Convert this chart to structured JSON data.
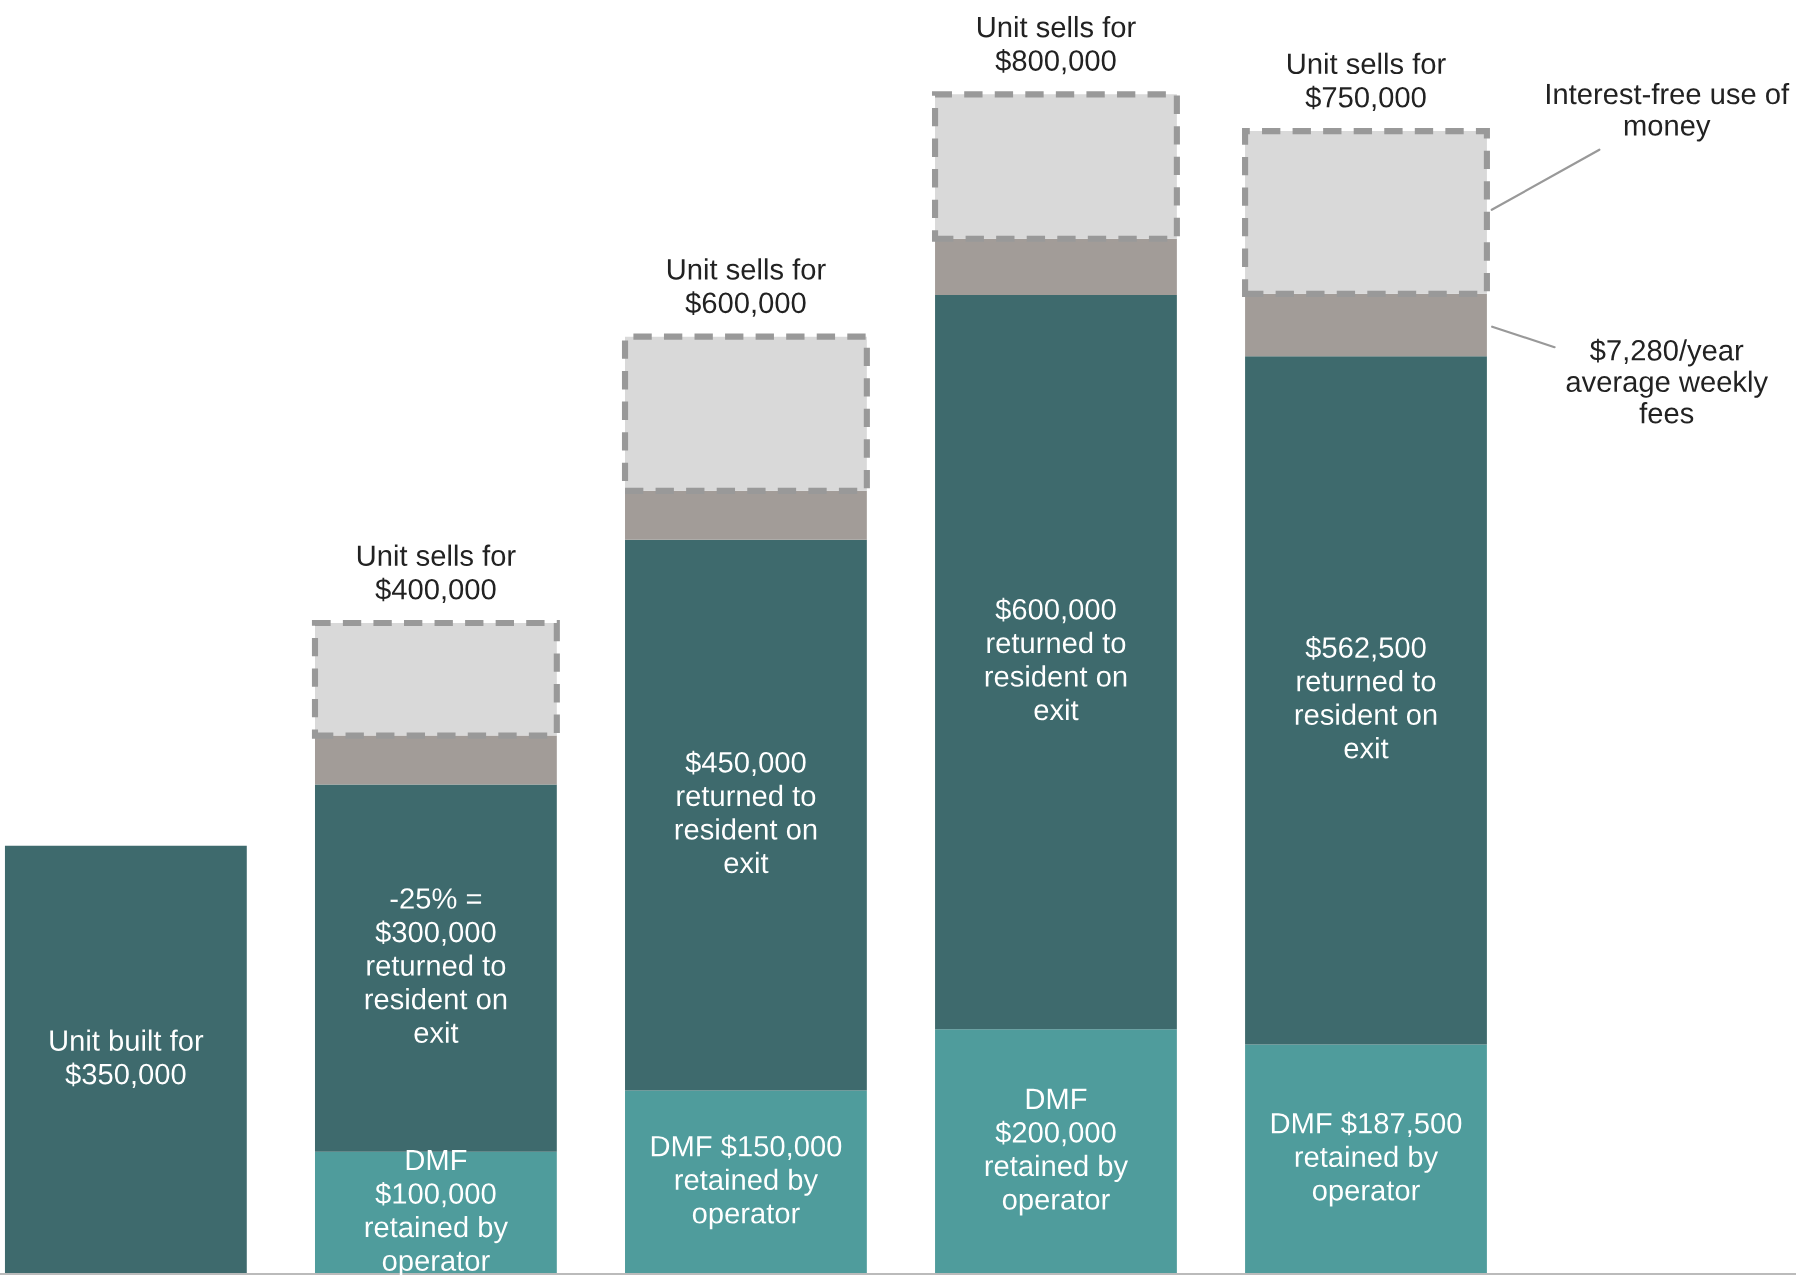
{
  "chart_data": {
    "type": "bar",
    "stacked": true,
    "legend": "right",
    "grid": false,
    "categories": [
      null,
      null,
      null,
      null,
      null
    ],
    "series": [
      {
        "color": "#3e6a6d",
        "values": [
          350000,
          null,
          null,
          null,
          null
        ],
        "value_labels": [
          "Unit built for\n$350,000",
          null,
          null,
          null,
          null
        ]
      },
      {
        "color": "#4f9c9c",
        "values": [
          null,
          100000,
          150000,
          200000,
          187500
        ],
        "value_labels": [
          null,
          "DMF\n$100,000\nretained by\noperator",
          "DMF $150,000\nretained by\noperator",
          "DMF\n$200,000\nretained by\noperator",
          "DMF $187,500\nretained by\noperator"
        ]
      },
      {
        "color": "#3e6a6d",
        "values": [
          null,
          300000,
          450000,
          600000,
          562500
        ],
        "value_labels": [
          null,
          "-25% =\n$300,000\nreturned to\nresident on\nexit",
          "$450,000\nreturned to\nresident on\nexit",
          "$600,000\nreturned to\nresident on\nexit",
          "$562,500\nreturned to\nresident on\nexit"
        ]
      },
      {
        "name": "$7,280/year\naverage weekly\nfees",
        "color": "#a29c98",
        "values": [
          null,
          40000,
          40000,
          46000,
          51000
        ]
      },
      {
        "name": "Interest-free use of\nmoney",
        "color": "#d9d9d9",
        "line_style": "dashed",
        "values": [
          null,
          92000,
          126000,
          118000,
          133000
        ]
      }
    ],
    "totals": [
      null,
      "Unit sells for\n$400,000",
      "Unit sells for\n$600,000",
      "Unit sells for\n$800,000",
      "Unit sells for\n$750,000"
    ]
  }
}
